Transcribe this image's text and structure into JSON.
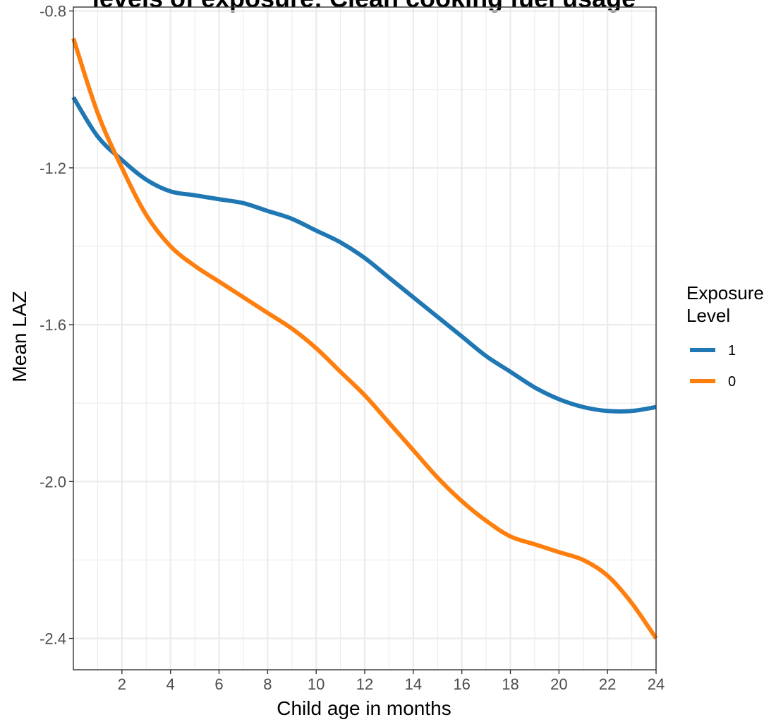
{
  "chart_data": {
    "type": "line",
    "title": "levels of exposure: Clean cooking fuel usage",
    "xlabel": "Child age in months",
    "ylabel": "Mean LAZ",
    "xlim": [
      0,
      24
    ],
    "ylim": [
      -2.48,
      -0.79
    ],
    "x_ticks": [
      2,
      4,
      6,
      8,
      10,
      12,
      14,
      16,
      18,
      20,
      22,
      24
    ],
    "y_ticks": [
      -2.4,
      -2.0,
      -1.6,
      -1.2,
      -0.8
    ],
    "x_tick_labels": [
      "2",
      "4",
      "6",
      "8",
      "10",
      "12",
      "14",
      "16",
      "18",
      "20",
      "22",
      "24"
    ],
    "y_tick_labels": [
      "-2.4",
      "-2.0",
      "-1.6",
      "-1.2",
      "-0.8"
    ],
    "grid": true,
    "legend": {
      "title_line1": "Exposure",
      "title_line2": "Level",
      "placement": "right"
    },
    "series": [
      {
        "name": "1",
        "color": "#1f77b4",
        "x": [
          0,
          1,
          2,
          3,
          4,
          5,
          6,
          7,
          8,
          9,
          10,
          11,
          12,
          13,
          14,
          15,
          16,
          17,
          18,
          19,
          20,
          21,
          22,
          23,
          24
        ],
        "y": [
          -1.02,
          -1.12,
          -1.18,
          -1.23,
          -1.26,
          -1.27,
          -1.28,
          -1.29,
          -1.31,
          -1.33,
          -1.36,
          -1.39,
          -1.43,
          -1.48,
          -1.53,
          -1.58,
          -1.63,
          -1.68,
          -1.72,
          -1.76,
          -1.79,
          -1.81,
          -1.82,
          -1.82,
          -1.81
        ]
      },
      {
        "name": "0",
        "color": "#ff7f0e",
        "x": [
          0,
          1,
          2,
          3,
          4,
          5,
          6,
          7,
          8,
          9,
          10,
          11,
          12,
          13,
          14,
          15,
          16,
          17,
          18,
          19,
          20,
          21,
          22,
          23,
          24
        ],
        "y": [
          -0.87,
          -1.06,
          -1.2,
          -1.32,
          -1.4,
          -1.45,
          -1.49,
          -1.53,
          -1.57,
          -1.61,
          -1.66,
          -1.72,
          -1.78,
          -1.85,
          -1.92,
          -1.99,
          -2.05,
          -2.1,
          -2.14,
          -2.16,
          -2.18,
          -2.2,
          -2.24,
          -2.31,
          -2.4
        ]
      }
    ]
  }
}
